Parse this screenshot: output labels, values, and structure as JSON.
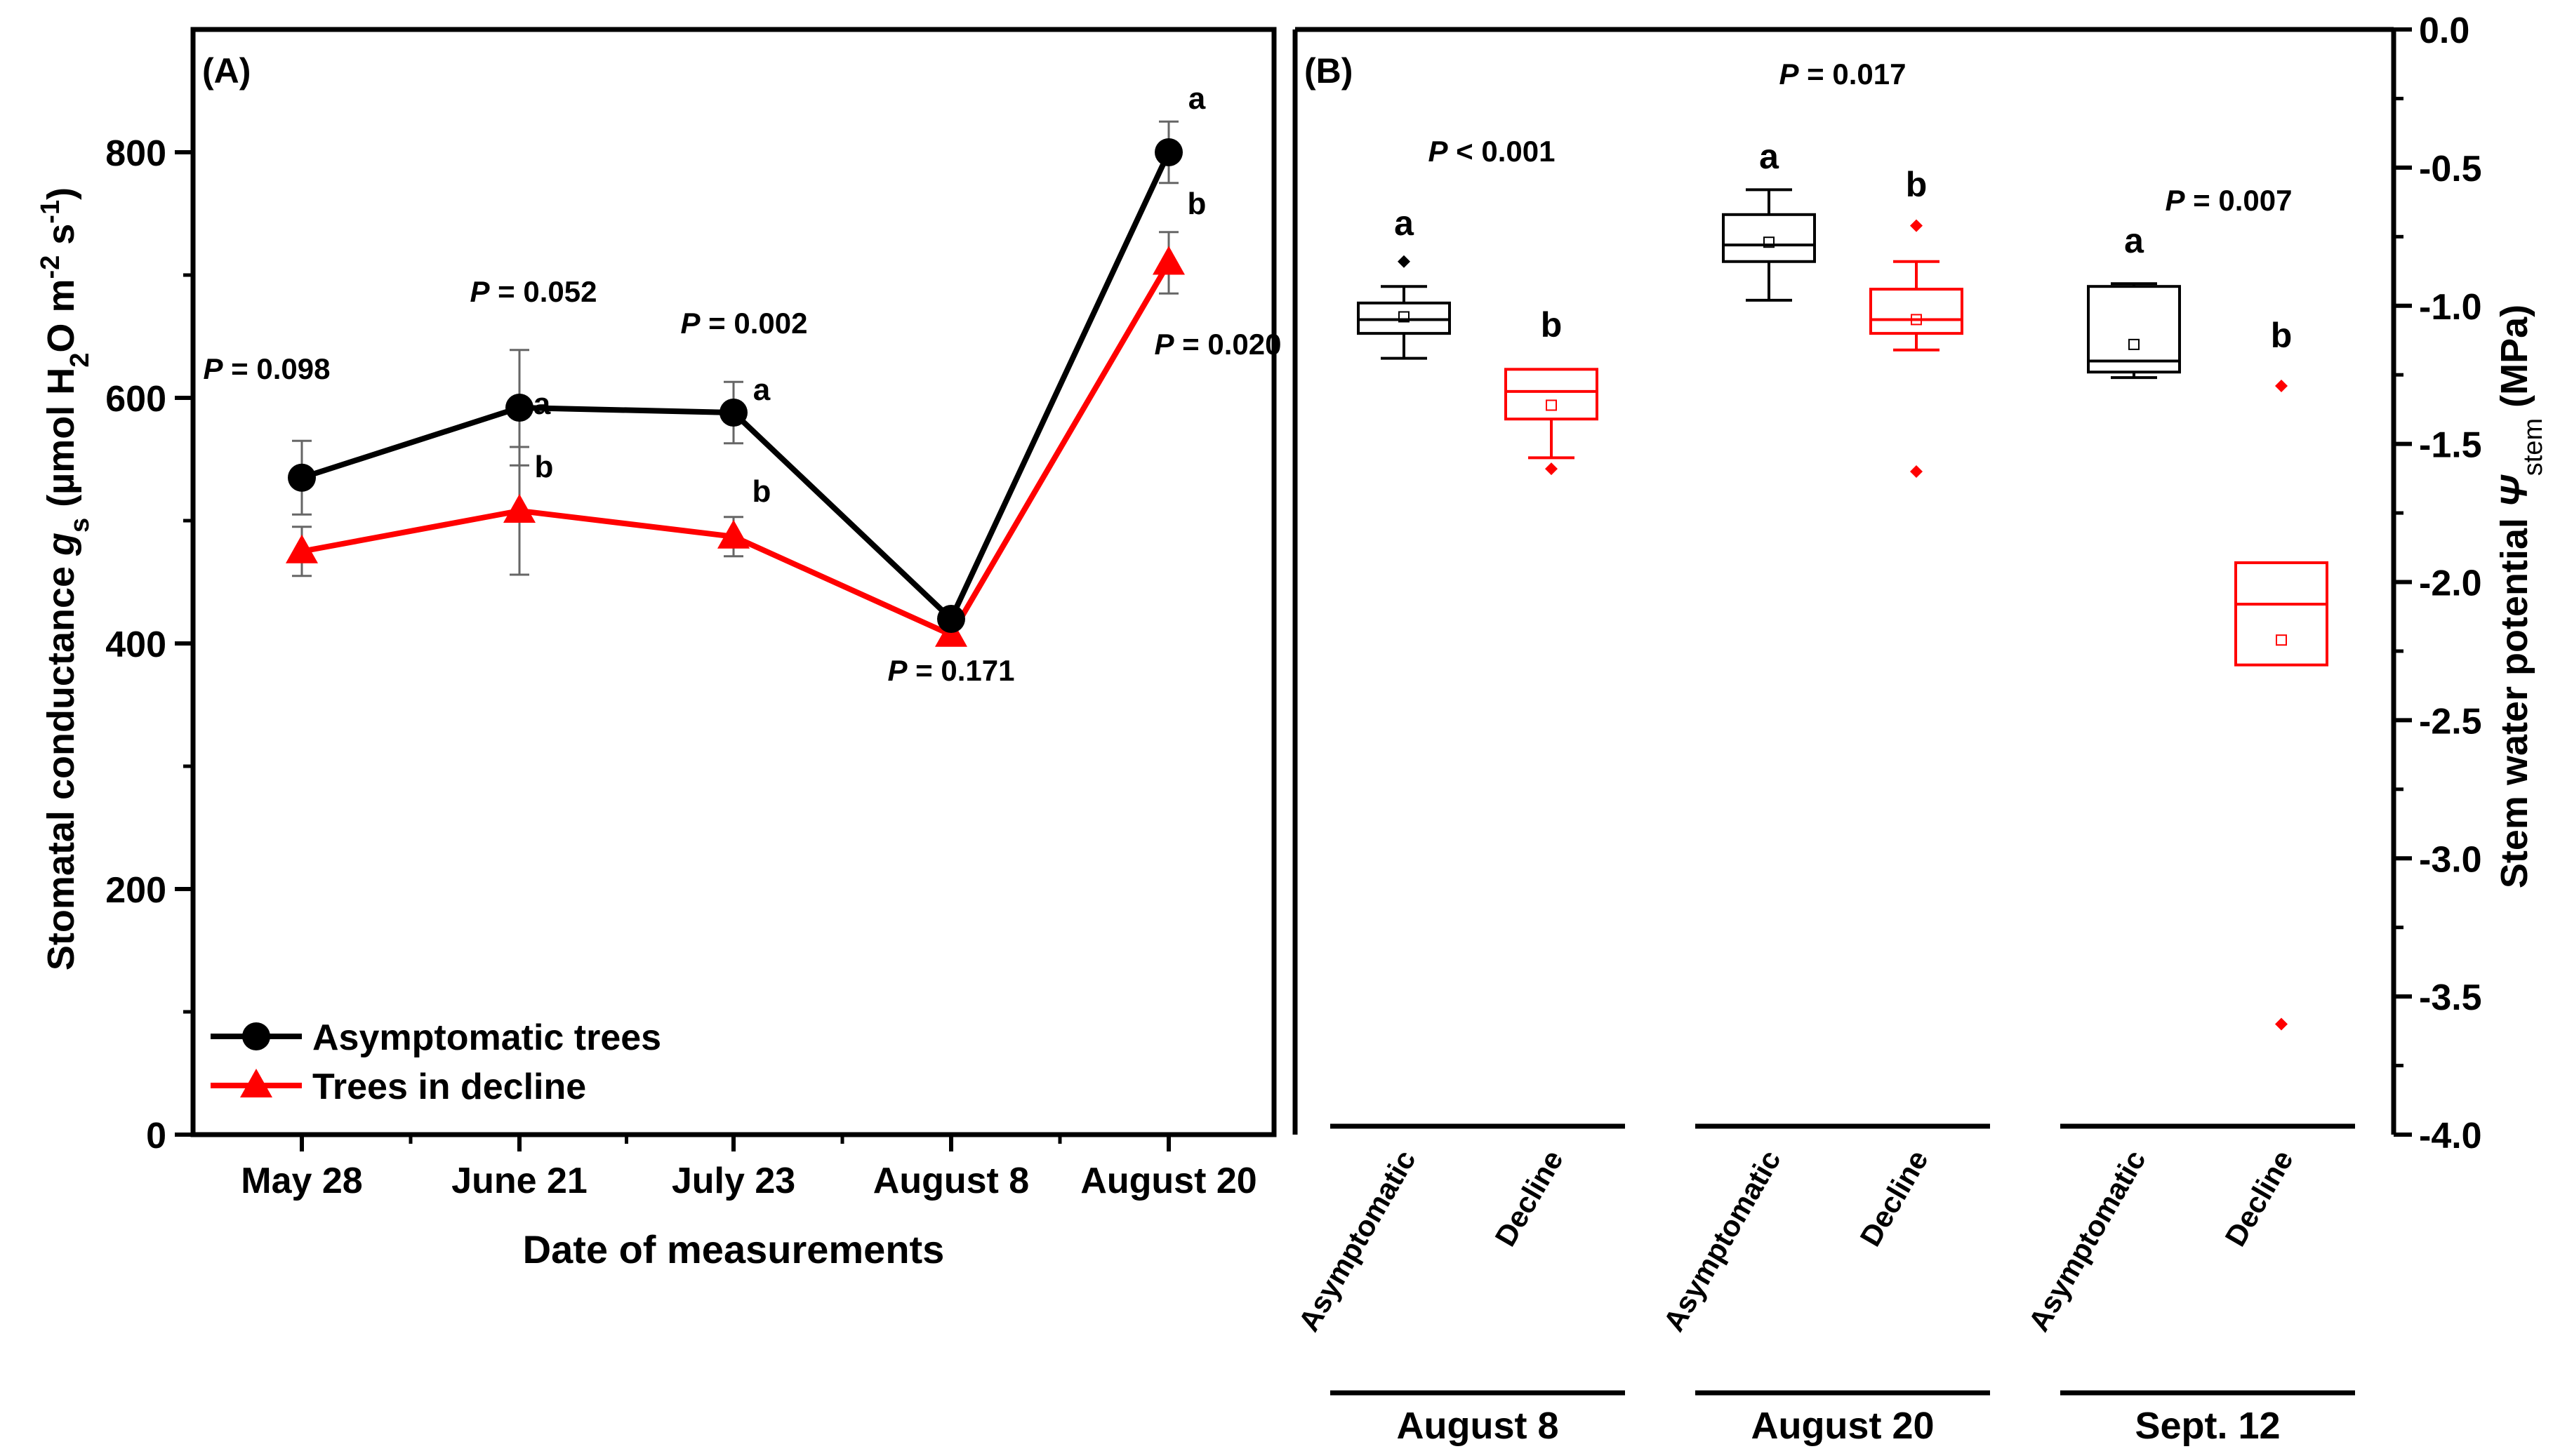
{
  "chart_data": [
    {
      "type": "line",
      "panel_label": "(A)",
      "xlabel": "Date of measurements",
      "ylabel": "Stomatal conductance g_s (µmol H2O m-2 s-1)",
      "ylabel_parts": {
        "main": "Stomatal conductance ",
        "sym": "g",
        "sub_s": "s",
        "open": " (µmol H",
        "sub_2": "2",
        "mid": "O m",
        "sup_m2": "-2",
        "sp": " s",
        "sup_m1": "-1",
        "close": ")"
      },
      "categories": [
        "May 28",
        "June 21",
        "July 23",
        "August 8",
        "August 20"
      ],
      "ylim": [
        0,
        900
      ],
      "yticks": [
        0,
        200,
        400,
        600,
        800
      ],
      "ytick_labels": [
        "0",
        "200",
        "400",
        "600",
        "800"
      ],
      "series": [
        {
          "name": "Asymptomatic trees",
          "color": "#000000",
          "marker": "circle",
          "values": [
            535,
            592,
            588,
            420,
            800
          ],
          "errors": [
            30,
            47,
            25,
            0,
            25
          ]
        },
        {
          "name": "Trees in decline",
          "color": "#ff0000",
          "marker": "triangle",
          "values": [
            475,
            508,
            487,
            407,
            710
          ],
          "errors": [
            20,
            52,
            16,
            0,
            25
          ]
        }
      ],
      "p_values": [
        "P = 0.098",
        "P = 0.052",
        "P = 0.002",
        "P = 0.171",
        "P = 0.020"
      ],
      "p_prefix": "P",
      "p_rest": [
        " = 0.098",
        " = 0.052",
        " = 0.002",
        " = 0.171",
        " = 0.020"
      ],
      "letters": [
        {
          "index": 1,
          "upper": "a",
          "lower": "b"
        },
        {
          "index": 2,
          "upper": "a",
          "lower": "b"
        },
        {
          "index": 4,
          "upper": "a",
          "lower": "b"
        }
      ]
    },
    {
      "type": "box",
      "panel_label": "(B)",
      "ylabel": "Stem water potential Ψstem (MPa)",
      "ylabel_parts": {
        "main": "Stem water potential  ",
        "sym": "Ψ",
        "sub": "stem",
        "unit": " (MPa)"
      },
      "ylim": [
        -4.0,
        0.0
      ],
      "yticks": [
        0.0,
        -0.5,
        -1.0,
        -1.5,
        -2.0,
        -2.5,
        -3.0,
        -3.5,
        -4.0
      ],
      "ytick_labels": [
        "0.0",
        "-0.5",
        "-1.0",
        "-1.5",
        "-2.0",
        "-2.5",
        "-3.0",
        "-3.5",
        "-4.0"
      ],
      "groups": [
        {
          "label": "August 8",
          "p_prefix": "P",
          "p_rest": " < 0.001",
          "boxes": [
            {
              "label": "Asymptomatic",
              "color": "#000000",
              "letter": "a",
              "q1": -1.1,
              "median": -1.05,
              "q3": -0.99,
              "mean": -1.04,
              "whisker_low": -1.19,
              "whisker_high": -0.93,
              "outliers": [
                -0.84
              ]
            },
            {
              "label": "Decline",
              "color": "#ff0000",
              "letter": "b",
              "q1": -1.41,
              "median": -1.31,
              "q3": -1.23,
              "mean": -1.36,
              "whisker_low": -1.55,
              "whisker_high": -1.23,
              "outliers": [
                -1.59
              ]
            }
          ]
        },
        {
          "label": "August 20",
          "p_prefix": "P",
          "p_rest": " = 0.017",
          "boxes": [
            {
              "label": "Asymptomatic",
              "color": "#000000",
              "letter": "a",
              "q1": -0.84,
              "median": -0.78,
              "q3": -0.67,
              "mean": -0.77,
              "whisker_low": -0.98,
              "whisker_high": -0.58,
              "outliers": []
            },
            {
              "label": "Decline",
              "color": "#ff0000",
              "letter": "b",
              "q1": -1.1,
              "median": -1.05,
              "q3": -0.94,
              "mean": -1.05,
              "whisker_low": -1.16,
              "whisker_high": -0.84,
              "outliers": [
                -0.71,
                -1.6
              ]
            }
          ]
        },
        {
          "label": "Sept. 12",
          "p_prefix": "P",
          "p_rest": " = 0.007",
          "boxes": [
            {
              "label": "Asymptomatic",
              "color": "#000000",
              "letter": "a",
              "q1": -1.24,
              "median": -1.2,
              "q3": -0.93,
              "mean": -1.14,
              "whisker_low": -1.26,
              "whisker_high": -0.92,
              "outliers": []
            },
            {
              "label": "Decline",
              "color": "#ff0000",
              "letter": "b",
              "q1": -2.3,
              "median": -2.08,
              "q3": -1.93,
              "mean": -2.21,
              "whisker_low": -2.3,
              "whisker_high": -1.93,
              "outliers": [
                -1.29,
                -3.6
              ]
            }
          ]
        }
      ]
    }
  ]
}
